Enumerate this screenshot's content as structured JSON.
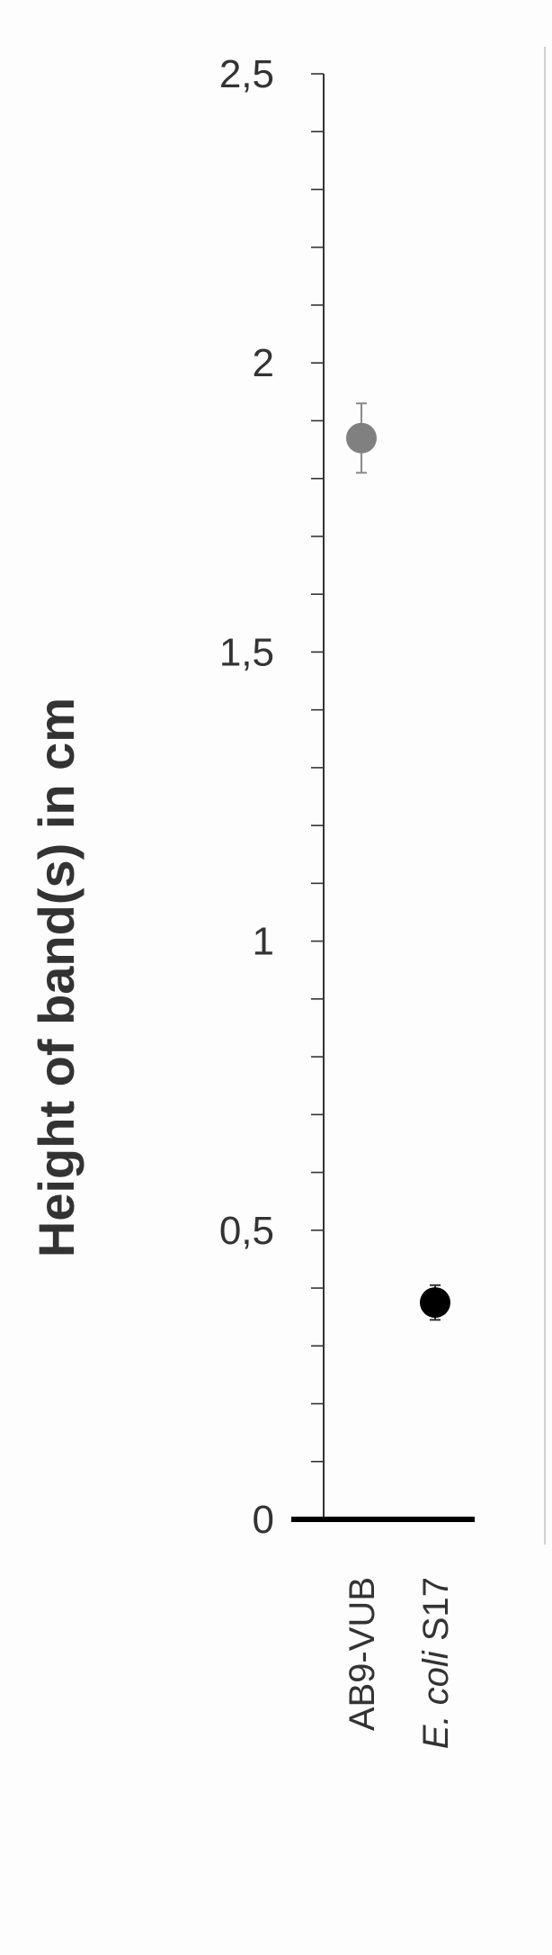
{
  "chart_data": {
    "type": "scatter",
    "title": "",
    "xlabel": "",
    "ylabel": "Height of band(s) in cm",
    "ylim": [
      0,
      2.5
    ],
    "y_ticks": [
      "0",
      "0,5",
      "1",
      "1,5",
      "2",
      "2,5"
    ],
    "y_tick_values": [
      0,
      0.5,
      1,
      1.5,
      2,
      2.5
    ],
    "y_minor_step": 0.1,
    "categories": [
      {
        "plain": "AB9-VUB",
        "italic": "",
        "suffix": ""
      },
      {
        "plain": "",
        "italic": "E. coli",
        "suffix": " S17"
      }
    ],
    "points": [
      {
        "category_index": 0,
        "y": 1.87,
        "err_low": 0.06,
        "err_high": 0.06,
        "color": "#808080"
      },
      {
        "category_index": 1,
        "y": 0.375,
        "err_low": 0.03,
        "err_high": 0.03,
        "color": "#000000"
      }
    ],
    "grid": false,
    "legend": "none"
  }
}
